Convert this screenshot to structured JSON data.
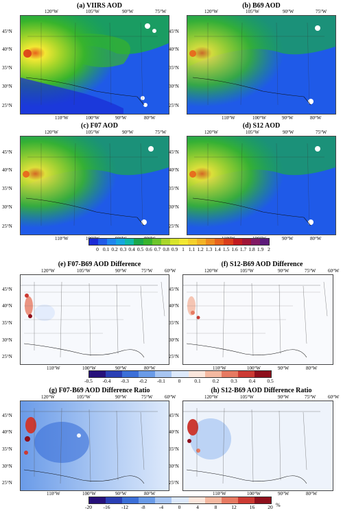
{
  "panels": [
    {
      "id": "a",
      "title": "(a) VIIRS AOD"
    },
    {
      "id": "b",
      "title": "(b) B69 AOD"
    },
    {
      "id": "c",
      "title": "(c) F07 AOD"
    },
    {
      "id": "d",
      "title": "(d) S12 AOD"
    },
    {
      "id": "e",
      "title": "(e) F07-B69 AOD Difference"
    },
    {
      "id": "f",
      "title": "(f) S12-B69 AOD Difference"
    },
    {
      "id": "g",
      "title": "(g) F07-B69 AOD Difference Ratio"
    },
    {
      "id": "h",
      "title": "(h) S12-B69 AOD Difference Ratio"
    }
  ],
  "top_lon_ticks": [
    "120°W",
    "105°W",
    "90°W",
    "75°W",
    "60°W"
  ],
  "bottom_lon_ticks": [
    "110°W",
    "100°W",
    "90°W",
    "80°W"
  ],
  "lat_ticks": [
    "45°N",
    "40°N",
    "35°N",
    "30°N",
    "25°N"
  ],
  "colorbars": {
    "aod": {
      "labels": [
        "0",
        "0.1",
        "0.2",
        "0.3",
        "0.4",
        "0.5",
        "0.6",
        "0.7",
        "0.8",
        "0.9",
        "1",
        "1.1",
        "1.2",
        "1.3",
        "1.4",
        "1.5",
        "1.6",
        "1.7",
        "1.8",
        "1.9",
        "2"
      ],
      "colors": [
        "#1a2bd6",
        "#1f5ae8",
        "#1e86ef",
        "#15a7e0",
        "#10b9a6",
        "#1aa84a",
        "#38b42c",
        "#6cc52a",
        "#a9d62a",
        "#d8e52c",
        "#f2e833",
        "#f5d12c",
        "#f3b426",
        "#ee8c20",
        "#e8631c",
        "#db3d1a",
        "#c21a20",
        "#a01437",
        "#821a64",
        "#5c1a7a"
      ]
    },
    "diff": {
      "labels": [
        "-0.5",
        "-0.4",
        "-0.3",
        "-0.2",
        "-0.1",
        "0",
        "0.1",
        "0.2",
        "0.3",
        "0.4",
        "0.5"
      ],
      "colors": [
        "#26107a",
        "#2a3fb4",
        "#3b6fd8",
        "#6a9be8",
        "#a7c5f2",
        "#dde9fb",
        "#fbe6dc",
        "#f4b8a0",
        "#e77a62",
        "#cc3a33",
        "#8e0f1c"
      ]
    },
    "ratio": {
      "labels": [
        "-20",
        "-16",
        "-12",
        "-8",
        "-4",
        "0",
        "4",
        "8",
        "12",
        "16",
        "20"
      ],
      "colors": [
        "#26107a",
        "#2a3fb4",
        "#3b6fd8",
        "#6a9be8",
        "#a7c5f2",
        "#dde9fb",
        "#fbe6dc",
        "#f4b8a0",
        "#e77a62",
        "#cc3a33",
        "#8e0f1c"
      ],
      "unit": "%"
    }
  }
}
